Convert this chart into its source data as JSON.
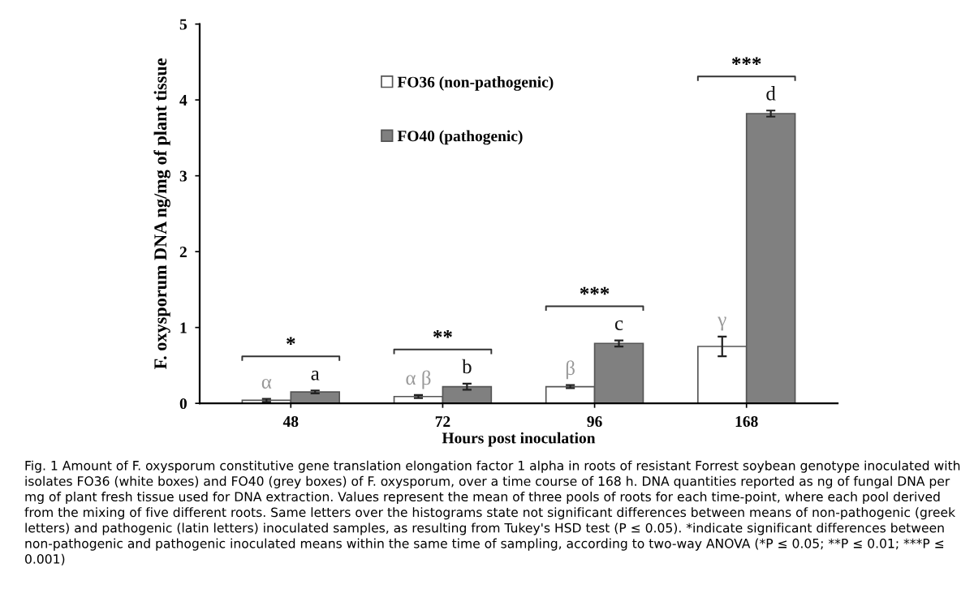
{
  "chart_data": {
    "type": "bar",
    "xlabel": "Hours post inoculation",
    "ylabel": "F. oxysporum DNA ng/mg of plant tissue",
    "categories": [
      "48",
      "72",
      "96",
      "168"
    ],
    "series": [
      {
        "name": "FO36 (non-pathogenic)",
        "color": "#ffffff",
        "values": [
          0.04,
          0.09,
          0.22,
          0.75
        ],
        "errors": [
          0.02,
          0.02,
          0.02,
          0.13
        ],
        "value_labels": [
          "α",
          "α β",
          "β",
          "γ"
        ]
      },
      {
        "name": "FO40 (pathogenic)",
        "color": "#808080",
        "values": [
          0.15,
          0.22,
          0.79,
          3.82
        ],
        "errors": [
          0.02,
          0.04,
          0.04,
          0.04
        ],
        "value_labels": [
          "a",
          "b",
          "c",
          "d"
        ]
      }
    ],
    "ylim": [
      0,
      5
    ],
    "yticks": [
      0,
      1,
      2,
      3,
      4,
      5
    ],
    "grid": false,
    "legend": "top",
    "annotations": [
      "*",
      "**",
      "***",
      "***",
      "Fig. 1 Amount of F. oxysporum constitutive gene translation elongation factor 1 alpha in roots of resistant Forrest soybean genotype inoculated with isolates FO36 (white boxes) and FO40 (grey boxes) of F. oxysporum, over a time course of 168 h. DNA quantities reported as ng of fungal DNA per mg of plant fresh tissue used for DNA extraction. Values represent the mean of three pools of roots for each time-point, where each pool derived from the mixing of five different roots. Same letters over the histograms state not significant differences between means of non-pathogenic (greek letters) and pathogenic (latin letters) inoculated samples, as resulting from Tukey's HSD test (P ≤ 0.05). *indicate significant differences between non-pathogenic and pathogenic inoculated means within the same time of sampling, according to two-way ANOVA (*P ≤ 0.05; **P ≤ 0.01; ***P ≤ 0.001)"
    ]
  }
}
